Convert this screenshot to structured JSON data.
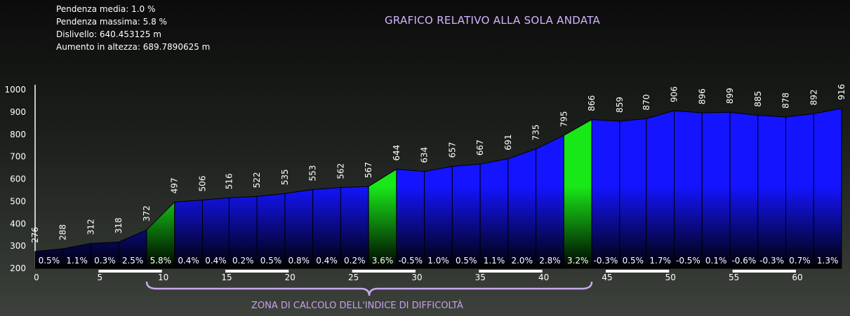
{
  "stats": {
    "pendenza_media": "Pendenza media: 1.0 %",
    "pendenza_massima": "Pendenza massima: 5.8 %",
    "dislivello": "Dislivello: 640.453125 m",
    "aumento": "Aumento in altezza: 689.7890625 m"
  },
  "title": "GRAFICO RELATIVO ALLA SOLA ANDATA",
  "zone_label": "ZONA DI CALCOLO DELL'INDICE DI DIFFICOLTÀ",
  "colors": {
    "climb": "#18e818",
    "normal": "#1414ff",
    "bottom": "#000000",
    "zone": "#c9a8f0"
  },
  "chart_data": {
    "type": "area",
    "xlim": [
      0,
      63.6
    ],
    "ylim": [
      200,
      1000
    ],
    "y_ticks": [
      200,
      300,
      400,
      500,
      600,
      700,
      800,
      900,
      1000
    ],
    "x_ticks": [
      0,
      5,
      10,
      15,
      20,
      25,
      30,
      35,
      40,
      45,
      50,
      55,
      60
    ],
    "x": [
      0,
      2.2,
      4.4,
      6.6,
      8.8,
      11.0,
      13.2,
      15.3,
      17.5,
      19.7,
      21.9,
      24.1,
      26.3,
      28.5,
      30.7,
      32.9,
      35.1,
      37.3,
      39.5,
      41.7,
      43.9,
      46.1,
      48.2,
      50.4,
      52.6,
      54.8,
      57.0,
      59.2,
      61.4,
      63.6
    ],
    "elevation": [
      276,
      288,
      312,
      318,
      372,
      497,
      506,
      516,
      522,
      535,
      553,
      562,
      567,
      644,
      634,
      657,
      667,
      691,
      735,
      795,
      866,
      859,
      870,
      906,
      896,
      899,
      885,
      878,
      892,
      916
    ],
    "grades": [
      "0.5%",
      "1.1%",
      "0.3%",
      "2.5%",
      "5.8%",
      "0.4%",
      "0.4%",
      "0.2%",
      "0.5%",
      "0.8%",
      "0.4%",
      "0.2%",
      "3.6%",
      "-0.5%",
      "1.0%",
      "0.5%",
      "1.1%",
      "2.0%",
      "2.8%",
      "3.2%",
      "-0.3%",
      "0.5%",
      "1.7%",
      "-0.5%",
      "0.1%",
      "-0.6%",
      "-0.3%",
      "0.7%",
      "1.3%"
    ],
    "highlight_segments": [
      4,
      12,
      19
    ],
    "zone_range": [
      8.8,
      43.9
    ]
  }
}
